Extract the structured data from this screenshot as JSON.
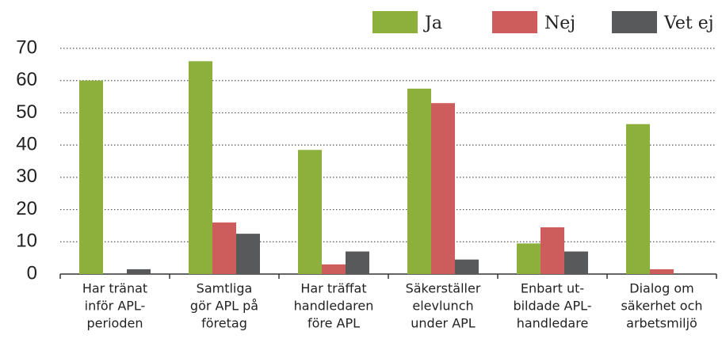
{
  "chart_data": {
    "type": "bar",
    "categories": [
      [
        "Har tränat",
        "inför APL-",
        "perioden"
      ],
      [
        "Samtliga",
        "gör APL på",
        "företag"
      ],
      [
        "Har träffat",
        "handledaren",
        "före APL"
      ],
      [
        "Säkerställer",
        "elevlunch",
        "under APL"
      ],
      [
        "Enbart ut-",
        "bildade APL-",
        "handledare"
      ],
      [
        "Dialog om",
        "säkerhet och",
        "arbetsmiljö"
      ]
    ],
    "series": [
      {
        "name": "Ja",
        "color": "#8db03d",
        "values": [
          60,
          66,
          38.5,
          57.5,
          9.5,
          46.5
        ]
      },
      {
        "name": "Nej",
        "color": "#cd5c5c",
        "values": [
          0,
          16,
          3,
          53,
          14.5,
          1.5
        ]
      },
      {
        "name": "Vet ej",
        "color": "#58595b",
        "values": [
          1.5,
          12.5,
          7,
          4.5,
          7,
          0
        ]
      }
    ],
    "ylim": [
      0,
      70
    ],
    "yticks": [
      0,
      10,
      20,
      30,
      40,
      50,
      60,
      70
    ],
    "grid": true,
    "legend": "top-right"
  }
}
